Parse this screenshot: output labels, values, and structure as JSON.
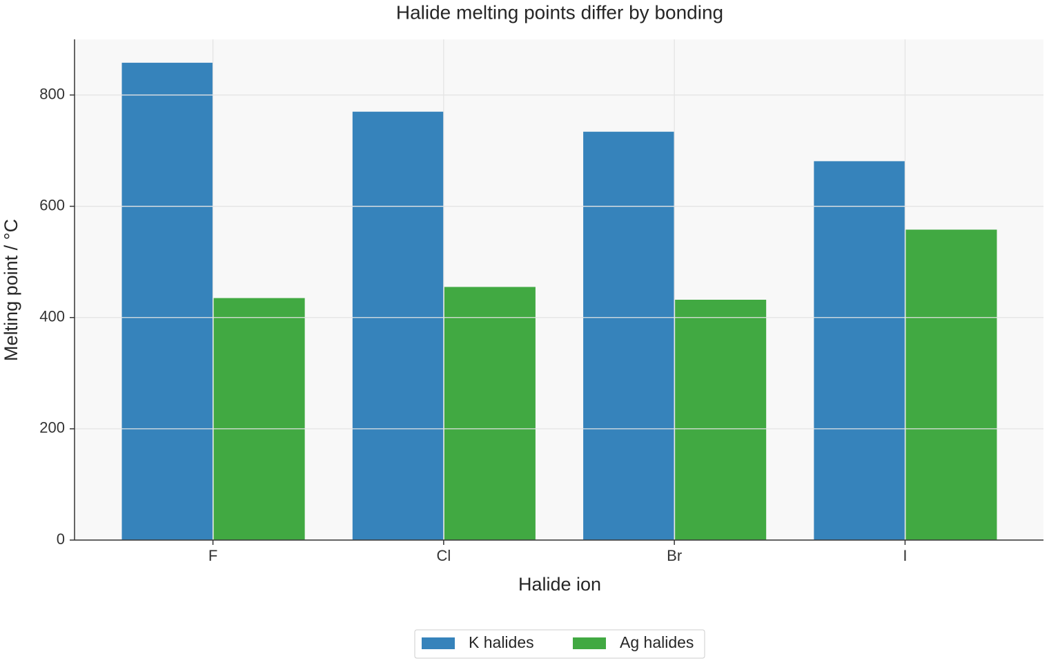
{
  "chart_data": {
    "type": "bar",
    "title": "Halide melting points differ by bonding",
    "x_label": "Halide ion",
    "y_label": "Melting point / °C",
    "categories": [
      "F",
      "Cl",
      "Br",
      "I"
    ],
    "series": [
      {
        "name": "K halides",
        "color": "#3683bb",
        "values": [
          858,
          770,
          734,
          681
        ]
      },
      {
        "name": "Ag halides",
        "color": "#41a942",
        "values": [
          435,
          455,
          432,
          558
        ]
      }
    ],
    "ylim": [
      0,
      900
    ],
    "yticks": [
      0,
      200,
      400,
      600,
      800
    ],
    "grid": true,
    "legend": "bottom"
  }
}
